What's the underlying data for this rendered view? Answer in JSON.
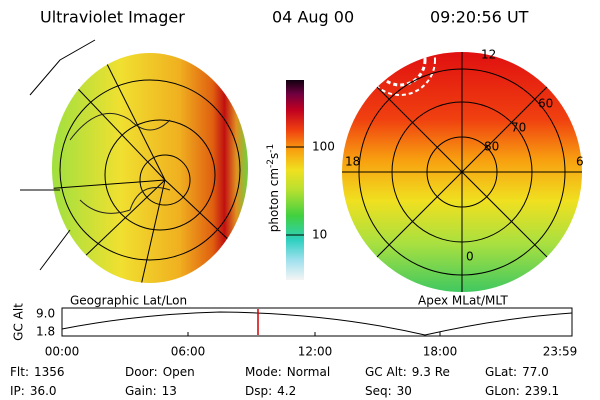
{
  "header": {
    "title": "Ultraviolet Imager",
    "date": "04 Aug 00",
    "time": "09:20:56 UT"
  },
  "colorbar": {
    "label": {
      "unit": "photon cm",
      "exp1": "-2",
      "s": "s",
      "exp2": "-1"
    },
    "ticks": [
      "100",
      "10"
    ]
  },
  "left_image": {
    "label": "Geographic Lat/Lon"
  },
  "right_image": {
    "label": "Apex MLat/MLT",
    "mlt": [
      "12",
      "18",
      "6",
      "0"
    ],
    "mlat": [
      "60",
      "70",
      "80"
    ]
  },
  "timeline": {
    "axis_label": "GC Alt",
    "yticks": [
      "9.0",
      "1.8"
    ],
    "xticks": [
      "00:00",
      "06:00",
      "12:00",
      "18:00",
      "23:59"
    ]
  },
  "info": [
    [
      {
        "key": "Flt:",
        "value": "1356"
      },
      {
        "key": "Door:",
        "value": "Open"
      },
      {
        "key": "Mode:",
        "value": "Normal"
      },
      {
        "key": "GC Alt:",
        "value": "9.3 Re"
      },
      {
        "key": "GLat:",
        "value": "77.0"
      }
    ],
    [
      {
        "key": "IP:",
        "value": "36.0"
      },
      {
        "key": "Gain:",
        "value": "13"
      },
      {
        "key": "Dsp:",
        "value": "4.2"
      },
      {
        "key": "Seq:",
        "value": "30"
      },
      {
        "key": "GLon:",
        "value": "239.1"
      }
    ]
  ]
}
